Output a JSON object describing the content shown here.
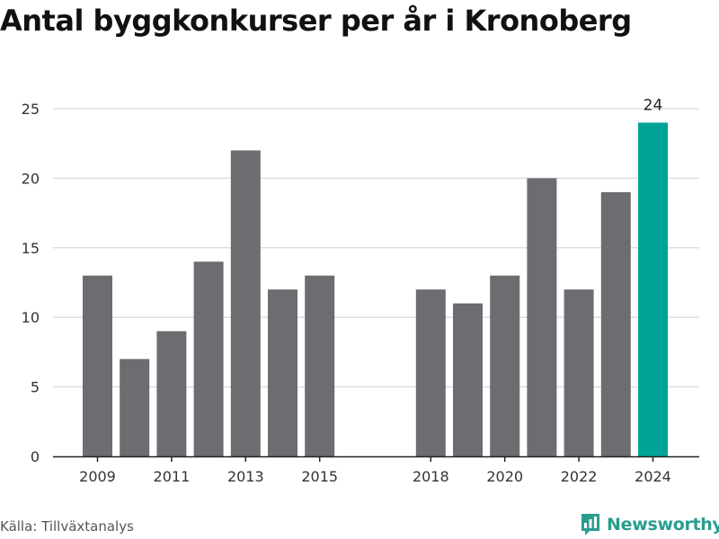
{
  "title": "Antal byggkonkurser per år i Kronoberg",
  "source": "Källa: Tillväxtanalys",
  "brand": {
    "name": "Newsworthy",
    "color": "#2a9d8f",
    "icon": "newsworthy-logo-icon"
  },
  "colors": {
    "bar": "#6d6c71",
    "highlight": "#00a398",
    "grid": "#dddddd",
    "axis": "#222222"
  },
  "chart_data": {
    "type": "bar",
    "title": "Antal byggkonkurser per år i Kronoberg",
    "xlabel": "",
    "ylabel": "",
    "categories": [
      "2009",
      "2010",
      "2011",
      "2012",
      "2013",
      "2014",
      "2015",
      "2016",
      "2017",
      "2018",
      "2019",
      "2020",
      "2021",
      "2022",
      "2023",
      "2024"
    ],
    "values": [
      13,
      7,
      9,
      14,
      22,
      12,
      13,
      null,
      null,
      12,
      11,
      13,
      20,
      12,
      19,
      24
    ],
    "highlight_category": "2024",
    "data_labels": {
      "2024": "24"
    },
    "xtick_labels": [
      "2009",
      "2011",
      "2013",
      "2015",
      "2018",
      "2020",
      "2022",
      "2024"
    ],
    "yticks": [
      0,
      5,
      10,
      15,
      20,
      25
    ],
    "ylim": [
      0,
      25
    ],
    "grid": true,
    "legend": "none"
  }
}
